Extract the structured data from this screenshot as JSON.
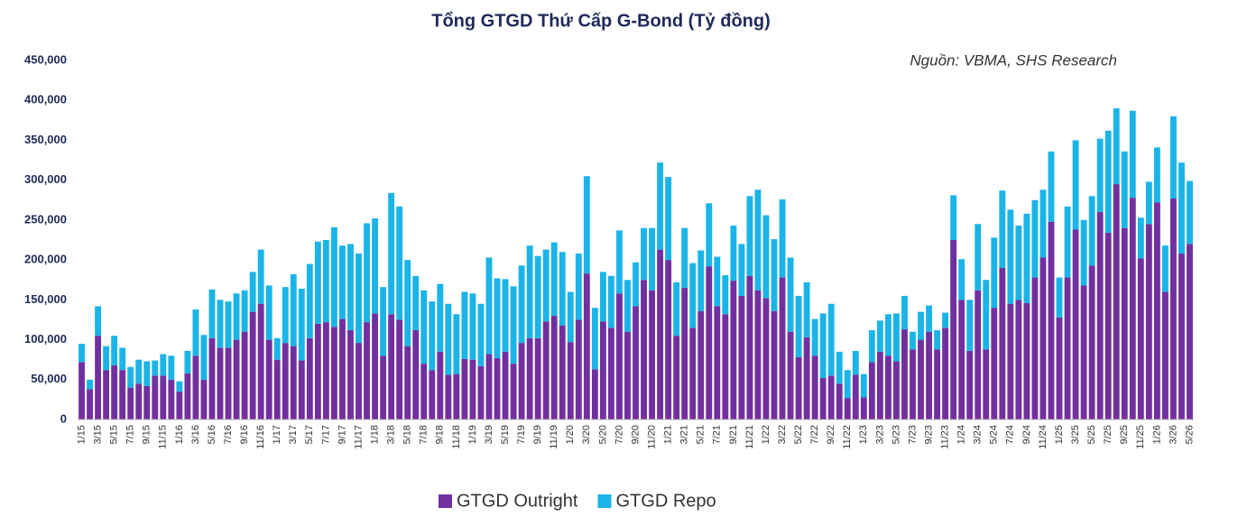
{
  "chart_data": {
    "type": "stacked_bar",
    "title": "Tổng GTGD Thứ Cấp G-Bond (Tỷ đồng)",
    "annotation": "Nguồn: VBMA, SHS Research",
    "categories": [
      "1/15",
      null,
      "3/15",
      null,
      "5/15",
      null,
      "7/15",
      null,
      "9/15",
      null,
      "11/15",
      null,
      "1/16",
      null,
      "3/16",
      null,
      "5/16",
      null,
      "7/16",
      null,
      "9/16",
      null,
      "11/16",
      null,
      "1/17",
      null,
      "3/17",
      null,
      "5/17",
      null,
      "7/17",
      null,
      "9/17",
      null,
      "11/17",
      null,
      "1/18",
      null,
      "3/18",
      null,
      "5/18",
      null,
      "7/18",
      null,
      "9/18",
      null,
      "11/18",
      null,
      "1/19",
      null,
      "3/19",
      null,
      "5/19",
      null,
      "7/19",
      null,
      "9/19",
      null,
      "11/19",
      null,
      "1/20",
      null,
      "3/20",
      null,
      "5/20",
      null,
      "7/20",
      null,
      "9/20",
      null,
      "11/20",
      null,
      "1/21",
      null,
      "3/21",
      null,
      "5/21",
      null,
      "7/21",
      null,
      "9/21",
      null,
      "11/21",
      null,
      "1/22",
      null,
      "3/22",
      null,
      "5/22",
      null,
      "7/22",
      null,
      "9/22",
      null,
      "11/22",
      null,
      "1/23",
      null,
      "3/23",
      null,
      "5/23",
      null,
      "7/23",
      null,
      "9/23",
      null,
      "11/23",
      null,
      "1/24",
      null,
      "3/24",
      null,
      "5/24",
      null,
      "7/24",
      null,
      "9/24",
      null,
      "11/24",
      null,
      "1/25",
      null,
      "3/25",
      null,
      "5/25",
      null,
      "7/25",
      null,
      "9/25",
      null,
      "11/25",
      null,
      "1/26",
      null,
      "3/26",
      null,
      "5/26"
    ],
    "series": [
      {
        "name": "GTGD Outright",
        "color": "#7030a0",
        "values": [
          72000,
          38000,
          105000,
          62000,
          68000,
          62000,
          40000,
          45000,
          42000,
          55000,
          55000,
          50000,
          35000,
          58000,
          80000,
          50000,
          102000,
          90000,
          90000,
          100000,
          110000,
          135000,
          145000,
          100000,
          75000,
          96000,
          92000,
          74000,
          102000,
          120000,
          122000,
          116000,
          126000,
          112000,
          96000,
          122000,
          133000,
          80000,
          132000,
          125000,
          92000,
          112000,
          70000,
          62000,
          85000,
          56000,
          57000,
          76000,
          75000,
          67000,
          82000,
          77000,
          85000,
          70000,
          96000,
          102000,
          102000,
          123000,
          130000,
          118000,
          97000,
          125000,
          183000,
          63000,
          123000,
          115000,
          158000,
          110000,
          142000,
          175000,
          162000,
          213000,
          200000,
          105000,
          165000,
          115000,
          136000,
          192000,
          142000,
          132000,
          174000,
          155000,
          180000,
          162000,
          152000,
          136000,
          178000,
          110000,
          78000,
          103000,
          80000,
          52000,
          55000,
          45000,
          27000,
          56000,
          28000,
          72000,
          85000,
          80000,
          73000,
          113000,
          88000,
          100000,
          110000,
          88000,
          115000,
          225000,
          150000,
          86000,
          162000,
          88000,
          140000,
          190000,
          145000,
          150000,
          146000,
          178000,
          203000,
          248000,
          128000,
          178000,
          238000,
          168000,
          193000,
          260000,
          234000,
          295000,
          240000,
          278000,
          202000,
          245000,
          272000,
          160000,
          277000,
          208000,
          220000
        ]
      },
      {
        "name": "GTGD Repo",
        "color": "#1ab4e8",
        "values": [
          23000,
          12000,
          37000,
          30000,
          37000,
          28000,
          26000,
          30000,
          31000,
          19000,
          27000,
          30000,
          13000,
          28000,
          58000,
          56000,
          61000,
          60000,
          58000,
          58000,
          52000,
          50000,
          68000,
          68000,
          27000,
          70000,
          90000,
          90000,
          93000,
          103000,
          103000,
          125000,
          92000,
          108000,
          112000,
          124000,
          119000,
          86000,
          152000,
          142000,
          108000,
          68000,
          92000,
          86000,
          85000,
          89000,
          75000,
          84000,
          83000,
          78000,
          121000,
          100000,
          91000,
          97000,
          97000,
          116000,
          103000,
          90000,
          92000,
          92000,
          63000,
          83000,
          122000,
          77000,
          62000,
          65000,
          79000,
          65000,
          55000,
          65000,
          78000,
          109000,
          104000,
          67000,
          75000,
          81000,
          76000,
          79000,
          62000,
          49000,
          69000,
          65000,
          100000,
          126000,
          104000,
          90000,
          98000,
          93000,
          77000,
          69000,
          46000,
          81000,
          90000,
          40000,
          35000,
          30000,
          29000,
          40000,
          39000,
          52000,
          60000,
          42000,
          22000,
          35000,
          33000,
          24000,
          19000,
          56000,
          51000,
          64000,
          83000,
          87000,
          88000,
          97000,
          118000,
          93000,
          112000,
          97000,
          85000,
          88000,
          50000,
          89000,
          112000,
          82000,
          87000,
          92000,
          128000,
          95000,
          96000,
          109000,
          51000,
          53000,
          69000,
          58000,
          103000,
          114000,
          79000
        ]
      }
    ],
    "ylim": [
      0,
      450000
    ],
    "yticks": [
      0,
      {
        "value": 50000,
        "label": "50,000"
      },
      {
        "value": 100000,
        "label": "100,000"
      },
      {
        "value": 150000,
        "label": "150,000"
      },
      {
        "value": 200000,
        "label": "200,000"
      },
      {
        "value": 250000,
        "label": "250,000"
      },
      {
        "value": 300000,
        "label": "300,000"
      },
      {
        "value": 350000,
        "label": "350,000"
      },
      {
        "value": 400000,
        "label": "400,000"
      },
      {
        "value": 450000,
        "label": "450,000"
      }
    ],
    "legend": "bottom"
  }
}
